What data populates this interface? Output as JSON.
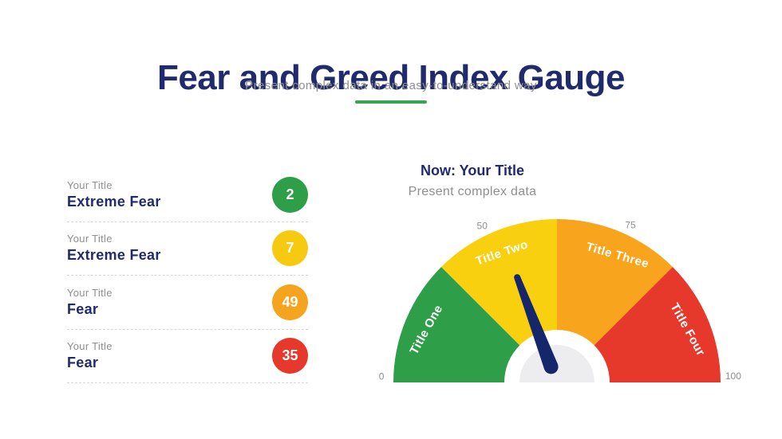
{
  "slide": {
    "title": "Fear and Greed Index Gauge",
    "subtitle": "Present complex data in an easy-to-understand way",
    "accent_color": "#3aa355",
    "title_color": "#1f2b6c",
    "muted_text_color": "#8f8f8f",
    "background_color": "#ffffff"
  },
  "legend_list": {
    "items": [
      {
        "label": "Your Title",
        "title": "Extreme Fear",
        "value": "2",
        "color": "#2f9e48"
      },
      {
        "label": "Your Title",
        "title": "Extreme Fear",
        "value": "7",
        "color": "#f7ca12"
      },
      {
        "label": "Your Title",
        "title": "Fear",
        "value": "49",
        "color": "#f5a41f"
      },
      {
        "label": "Your Title",
        "title": "Fear",
        "value": "35",
        "color": "#e6392b"
      }
    ]
  },
  "gauge_header": {
    "title": "Now: Your Title",
    "subtitle": "Present complex data"
  },
  "chart_data": {
    "type": "gauge",
    "min": 0,
    "max": 100,
    "segments": [
      {
        "label": "Title One",
        "start": 0,
        "end": 25,
        "color": "#2f9e48",
        "label_angle_deg": 158,
        "label_rotation_deg": -61
      },
      {
        "label": "Title Two",
        "start": 25,
        "end": 50,
        "color": "#f9d00f",
        "label_angle_deg": 113,
        "label_rotation_deg": -19
      },
      {
        "label": "Title Three",
        "start": 50,
        "end": 75,
        "color": "#f8a41c",
        "label_angle_deg": 64.5,
        "label_rotation_deg": 16
      },
      {
        "label": "Title Four",
        "start": 75,
        "end": 100,
        "color": "#e6392b",
        "label_angle_deg": 22,
        "label_rotation_deg": 61
      }
    ],
    "ticks": [
      {
        "label": "0",
        "angle_deg": 178.2,
        "radius": 220
      },
      {
        "label": "50",
        "angle_deg": 115.6,
        "radius": 217
      },
      {
        "label": "75",
        "angle_deg": 64.9,
        "radius": 217
      },
      {
        "label": "100",
        "angle_deg": 1.8,
        "radius": 221
      }
    ],
    "needle": {
      "value": 38.5,
      "color": "#14276b"
    },
    "hub": {
      "outer_color": "#ffffff",
      "inner_color": "#ededef"
    },
    "tick_color": "#8f8f8f",
    "segment_label_color": "#ffffff",
    "layout": {
      "start_angle_deg": 180,
      "end_angle_deg": 0,
      "radius": 205,
      "label_radius": 176,
      "hub_outer_radius": 66,
      "hub_inner_radius": 47,
      "needle_tip_radius": 141,
      "needle_base_radius": 21,
      "needle_half_width_base": 9,
      "needle_half_width_tip": 4
    }
  }
}
